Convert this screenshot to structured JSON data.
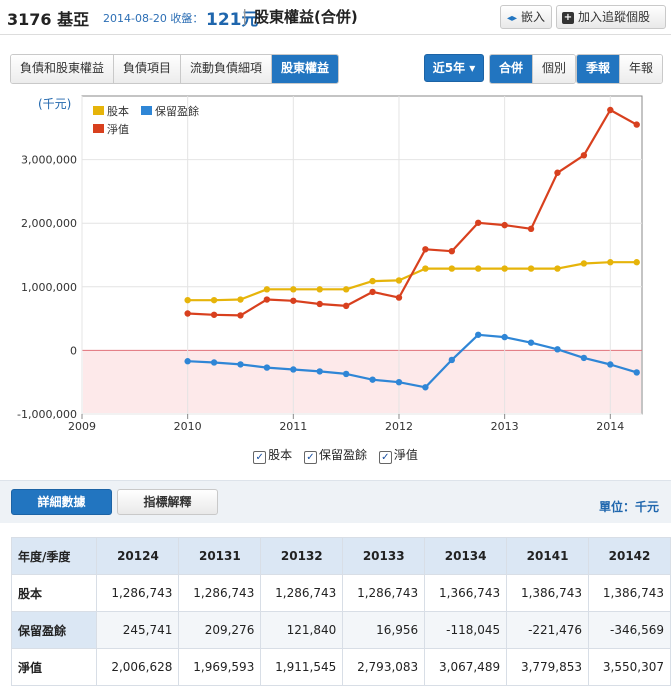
{
  "header": {
    "code": "3176 基亞",
    "date": "2014-08-20 收盤：",
    "price": "121元",
    "sep": "|",
    "title": "股東權益(合併)",
    "embed_label": "嵌入",
    "track_label": "加入追蹤個股"
  },
  "tabs": [
    "負債和股東權益",
    "負債項目",
    "流動負債細項",
    "股東權益"
  ],
  "controls": {
    "range": "近5年 ▾",
    "consolidated": "合併",
    "individual": "個別",
    "quarterly": "季報",
    "annual": "年報"
  },
  "legend": {
    "s1": "股本",
    "s2": "保留盈餘",
    "s3": "淨值"
  },
  "colors": {
    "s1": "#e6b40a",
    "s2": "#2f86d6",
    "s3": "#d8401e"
  },
  "chart_data": {
    "type": "line",
    "ylabel": "(千元)",
    "ylim": [
      -1000000,
      4000000
    ],
    "xlim": [
      2009,
      2014.3
    ],
    "yticks": [
      {
        "v": 3000000,
        "label": "3,000,000"
      },
      {
        "v": 2000000,
        "label": "2,000,000"
      },
      {
        "v": 1000000,
        "label": "1,000,000"
      },
      {
        "v": 0,
        "label": "0"
      },
      {
        "v": -1000000,
        "label": "-1,000,000"
      }
    ],
    "xticks": [
      {
        "v": 2009,
        "label": "2009"
      },
      {
        "v": 2010,
        "label": "2010"
      },
      {
        "v": 2011,
        "label": "2011"
      },
      {
        "v": 2012,
        "label": "2012"
      },
      {
        "v": 2013,
        "label": "2013"
      },
      {
        "v": 2014,
        "label": "2014"
      }
    ],
    "x": [
      2010.0,
      2010.25,
      2010.5,
      2010.75,
      2011.0,
      2011.25,
      2011.5,
      2011.75,
      2012.0,
      2012.25,
      2012.5,
      2012.75,
      2013.0,
      2013.25,
      2013.5,
      2013.75,
      2014.0,
      2014.25
    ],
    "series": [
      {
        "name": "股本",
        "values": [
          790000,
          790000,
          800000,
          960000,
          960000,
          960000,
          960000,
          1090000,
          1100000,
          1286743,
          1286743,
          1286743,
          1286743,
          1286743,
          1286743,
          1366743,
          1386743,
          1386743
        ]
      },
      {
        "name": "保留盈餘",
        "values": [
          -170000,
          -190000,
          -220000,
          -270000,
          -300000,
          -330000,
          -370000,
          -460000,
          -500000,
          -580000,
          -150000,
          245741,
          209276,
          121840,
          16956,
          -118045,
          -221476,
          -346569
        ]
      },
      {
        "name": "淨值",
        "values": [
          580000,
          560000,
          550000,
          800000,
          780000,
          730000,
          700000,
          920000,
          830000,
          1590000,
          1560000,
          2006628,
          1969593,
          1911545,
          2793083,
          3067489,
          3779853,
          3550307
        ]
      }
    ]
  },
  "detail": {
    "tab_detail": "詳細數據",
    "tab_explain": "指標解釋",
    "unit": "單位：千元"
  },
  "table": {
    "corner": "年度/季度",
    "columns": [
      "20124",
      "20131",
      "20132",
      "20133",
      "20134",
      "20141",
      "20142"
    ],
    "rows": [
      {
        "label": "股本",
        "values": [
          "1,286,743",
          "1,286,743",
          "1,286,743",
          "1,286,743",
          "1,366,743",
          "1,386,743",
          "1,386,743"
        ]
      },
      {
        "label": "保留盈餘",
        "values": [
          "245,741",
          "209,276",
          "121,840",
          "16,956",
          "-118,045",
          "-221,476",
          "-346,569"
        ]
      },
      {
        "label": "淨值",
        "values": [
          "2,006,628",
          "1,969,593",
          "1,911,545",
          "2,793,083",
          "3,067,489",
          "3,779,853",
          "3,550,307"
        ]
      }
    ]
  }
}
